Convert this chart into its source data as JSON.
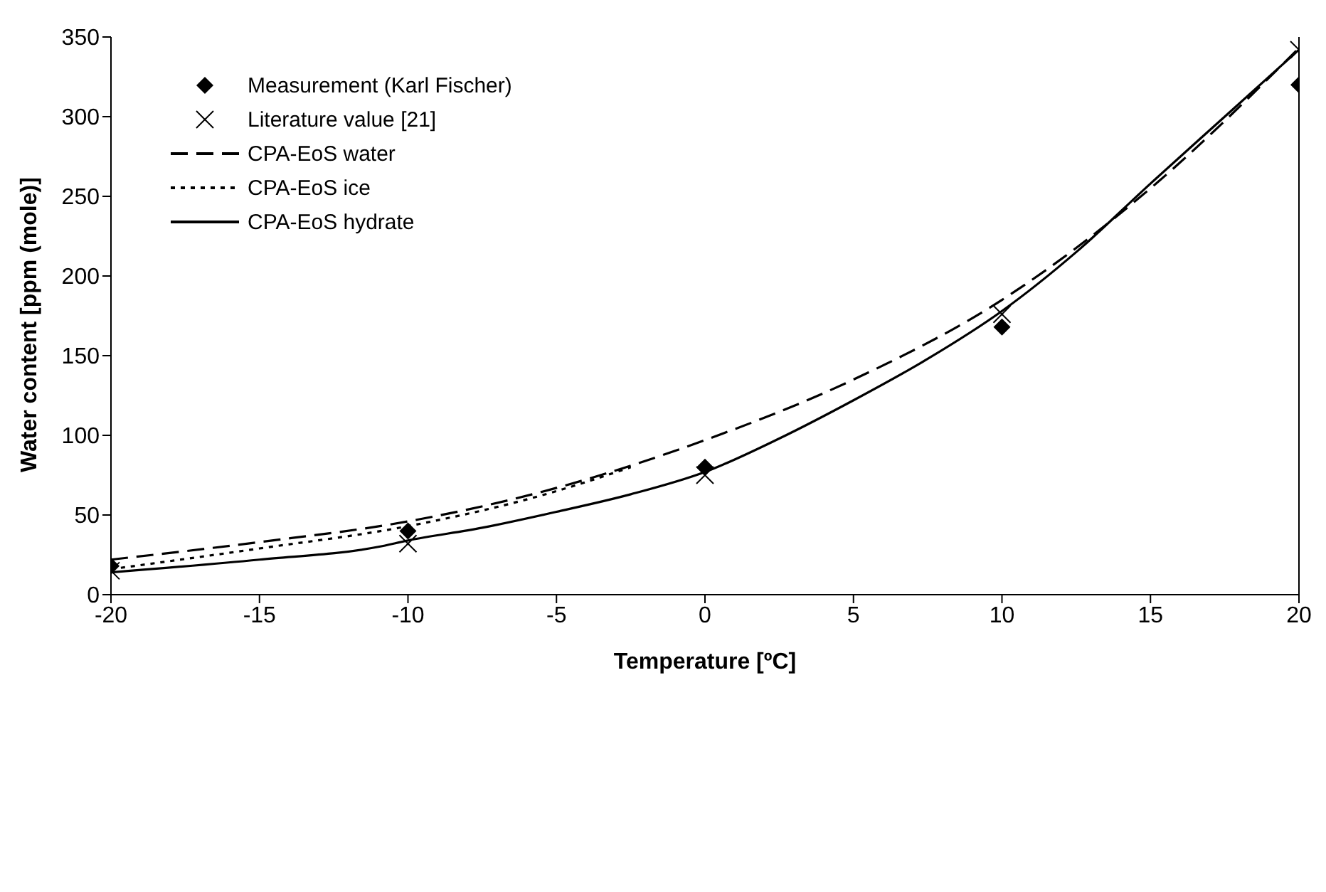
{
  "chart_data": {
    "type": "line",
    "xlabel": "Temperature [ºC]",
    "ylabel": "Water content [ppm (mole)]",
    "xlim": [
      -20,
      20
    ],
    "xticks": [
      -20,
      -15,
      -10,
      -5,
      0,
      5,
      10,
      15,
      20
    ],
    "ylim": [
      0,
      350
    ],
    "yticks": [
      0,
      50,
      100,
      150,
      200,
      250,
      300,
      350
    ],
    "grid": false,
    "legend": "top left",
    "ref_lines": [
      {
        "axis": "x",
        "value": 20,
        "label": null,
        "color": "#000000"
      }
    ],
    "series": [
      {
        "name": "Measurement (Karl Fischer)",
        "type": "scatter",
        "marker": "diamond",
        "color": "#000000",
        "x": [
          -20,
          -10,
          0,
          10,
          20
        ],
        "values": [
          18,
          40,
          80,
          168,
          320
        ]
      },
      {
        "name": "Literature value [21]",
        "type": "scatter",
        "marker": "cross",
        "color": "#000000",
        "x": [
          -20,
          -10,
          0,
          10,
          20
        ],
        "values": [
          15,
          32,
          75,
          176,
          342
        ]
      },
      {
        "name": "CPA-EoS water",
        "line_style": "dashed",
        "color": "#000000",
        "x": [
          -20,
          -15,
          -10,
          -5,
          0,
          5,
          10,
          15,
          20
        ],
        "values": [
          22,
          33,
          46,
          67,
          97,
          135,
          185,
          255,
          343
        ]
      },
      {
        "name": "CPA-EoS ice",
        "line_style": "dotted",
        "color": "#000000",
        "x": [
          -20,
          -15,
          -10,
          -5,
          -2.5
        ],
        "values": [
          16,
          29,
          43,
          65,
          80
        ]
      },
      {
        "name": "CPA-EoS hydrate",
        "line_style": "solid",
        "color": "#000000",
        "x": [
          -20,
          -15,
          -11,
          -10,
          -7.5,
          -5,
          -2.5,
          0,
          2.5,
          5,
          7.5,
          10,
          12.5,
          15,
          17.5,
          20
        ],
        "values": [
          14,
          22,
          30,
          34,
          42,
          52,
          63,
          77,
          98,
          122,
          148,
          178,
          215,
          258,
          300,
          342
        ]
      }
    ]
  }
}
